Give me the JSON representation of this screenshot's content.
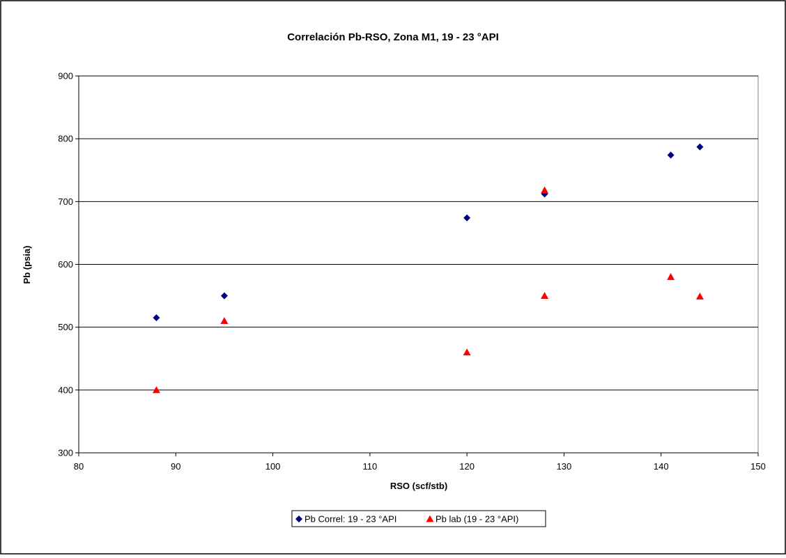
{
  "chart_data": {
    "type": "scatter",
    "title": "Correlación Pb-RSO, Zona M1, 19 - 23 °API",
    "xlabel": "RSO (scf/stb)",
    "ylabel": "Pb (psia)",
    "xlim": [
      80,
      150
    ],
    "ylim": [
      300,
      900
    ],
    "xticks": [
      80,
      90,
      100,
      110,
      120,
      130,
      140,
      150
    ],
    "yticks": [
      300,
      400,
      500,
      600,
      700,
      800,
      900
    ],
    "grid": "horizontal major gridlines",
    "legend_placement": "bottom-center",
    "series": [
      {
        "name": "Pb Correl: 19 - 23 °API",
        "marker": "diamond",
        "color": "#000080",
        "x": [
          88,
          95,
          120,
          128,
          141,
          144
        ],
        "y": [
          515,
          550,
          674,
          712,
          774,
          787
        ]
      },
      {
        "name": "Pb lab (19 - 23 °API)",
        "marker": "triangle",
        "color": "#ff0000",
        "x": [
          88,
          95,
          120,
          128,
          128,
          141,
          144
        ],
        "y": [
          400,
          510,
          460,
          550,
          718,
          580,
          549
        ]
      }
    ]
  }
}
